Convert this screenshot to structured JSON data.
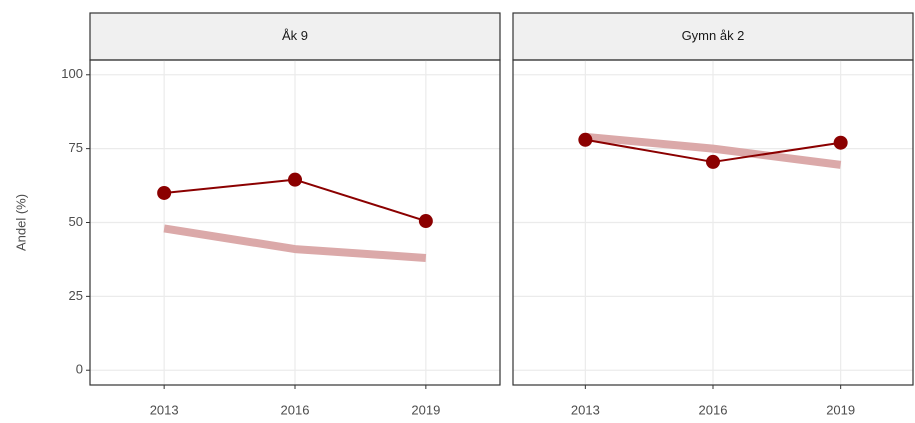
{
  "chart_data": [
    {
      "type": "line",
      "title": "Åk 9",
      "ylabel": "Andel (%)",
      "x": [
        2013,
        2016,
        2019
      ],
      "series": [
        {
          "color": "#dba9a9",
          "values": [
            48,
            41,
            38
          ]
        },
        {
          "color": "#8b0000",
          "values": [
            60,
            64.5,
            50.5
          ]
        }
      ],
      "xlim": [
        2011.3,
        2020.7
      ],
      "xticks": [
        2013,
        2016,
        2019
      ],
      "ylim": [
        -5,
        105
      ],
      "yticks": [
        0,
        25,
        50,
        75,
        100
      ],
      "grid": true
    },
    {
      "type": "line",
      "title": "Gymn åk 2",
      "x": [
        2013,
        2016,
        2019
      ],
      "series": [
        {
          "color": "#dba9a9",
          "values": [
            79,
            75,
            69.5
          ]
        },
        {
          "color": "#8b0000",
          "values": [
            78,
            70.5,
            77
          ]
        }
      ],
      "xlim": [
        2011.3,
        2020.7
      ],
      "xticks": [
        2013,
        2016,
        2019
      ],
      "ylim": [
        -5,
        105
      ],
      "yticks": [
        0,
        25,
        50,
        75,
        100
      ],
      "grid": true
    }
  ]
}
